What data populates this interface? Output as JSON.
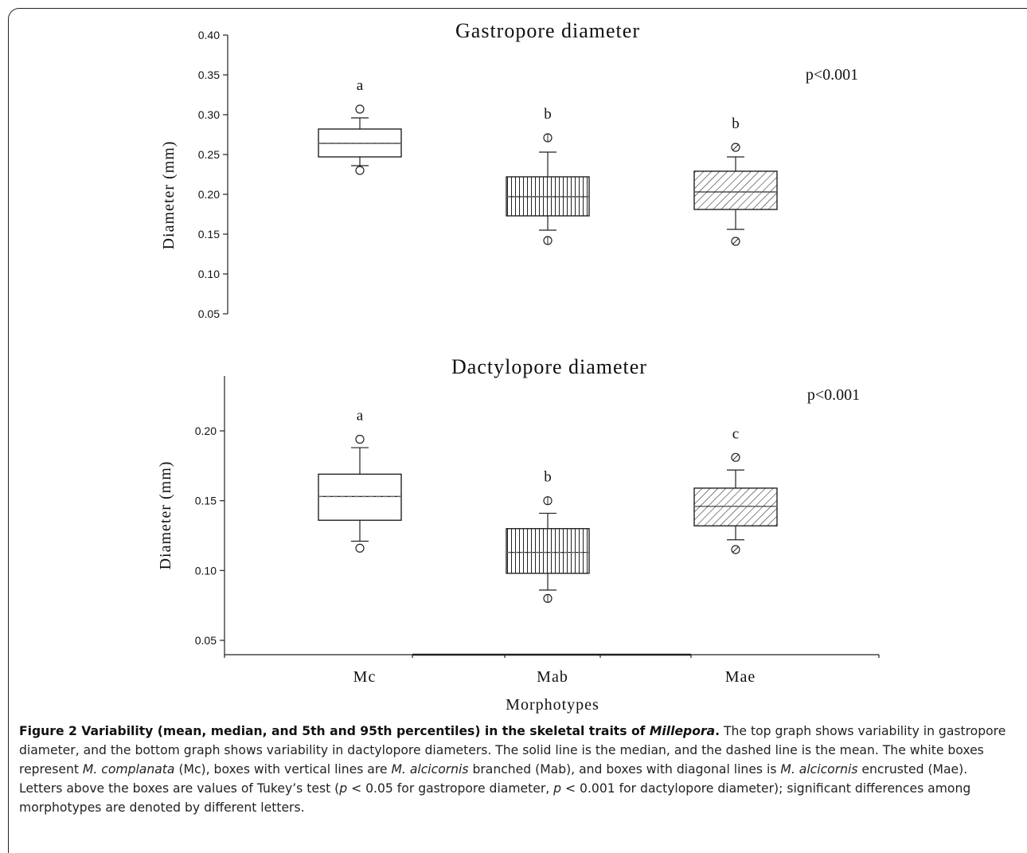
{
  "chart_data": [
    {
      "type": "box",
      "title": "Gastropore diameter",
      "ylabel": "Diameter (mm)",
      "ylim": [
        0.05,
        0.4
      ],
      "yticks": [
        "0.05",
        "0.10",
        "0.15",
        "0.20",
        "0.25",
        "0.30",
        "0.35",
        "0.40"
      ],
      "pvalue": "p<0.001",
      "boxes": [
        {
          "category": "Mc",
          "pattern": "none",
          "p5": 0.23,
          "q1": 0.247,
          "median": 0.264,
          "mean": 0.264,
          "q3": 0.282,
          "p95": 0.307,
          "whisker_low": 0.236,
          "whisker_high": 0.296,
          "tukey": "a"
        },
        {
          "category": "Mab",
          "pattern": "vertical",
          "p5": 0.142,
          "q1": 0.173,
          "median": 0.197,
          "mean": 0.197,
          "q3": 0.222,
          "p95": 0.271,
          "whisker_low": 0.155,
          "whisker_high": 0.253,
          "tukey": "b"
        },
        {
          "category": "Mae",
          "pattern": "diagonal",
          "p5": 0.141,
          "q1": 0.181,
          "median": 0.203,
          "mean": 0.203,
          "q3": 0.229,
          "p95": 0.259,
          "whisker_low": 0.156,
          "whisker_high": 0.247,
          "tukey": "b"
        }
      ]
    },
    {
      "type": "box",
      "title": "Dactylopore diameter",
      "ylabel": "Diameter (mm)",
      "xlabel": "Morphotypes",
      "ylim": [
        0.04,
        0.24
      ],
      "yticks": [
        "0.05",
        "0.10",
        "0.15",
        "0.20"
      ],
      "categories": [
        "Mc",
        "Mab",
        "Mae"
      ],
      "pvalue": "p<0.001",
      "boxes": [
        {
          "category": "Mc",
          "pattern": "none",
          "p5": 0.116,
          "q1": 0.136,
          "median": 0.153,
          "mean": 0.153,
          "q3": 0.169,
          "p95": 0.194,
          "whisker_low": 0.121,
          "whisker_high": 0.188,
          "tukey": "a"
        },
        {
          "category": "Mab",
          "pattern": "vertical",
          "p5": 0.08,
          "q1": 0.098,
          "median": 0.113,
          "mean": 0.113,
          "q3": 0.13,
          "p95": 0.15,
          "whisker_low": 0.086,
          "whisker_high": 0.141,
          "tukey": "b"
        },
        {
          "category": "Mae",
          "pattern": "diagonal",
          "p5": 0.115,
          "q1": 0.132,
          "median": 0.146,
          "mean": 0.146,
          "q3": 0.159,
          "p95": 0.181,
          "whisker_low": 0.122,
          "whisker_high": 0.172,
          "tukey": "c"
        }
      ]
    }
  ],
  "caption": {
    "label": "Figure 2 Variability (mean, median, and 5th and 95th percentiles) in the skeletal traits of ",
    "label_genus": "Millepora",
    "label_end": ".",
    "t1": " The top graph shows variability in gastropore diameter, and the bottom graph shows variability in dactylopore diameters. The solid line is the median, and the dashed line is the mean. The white boxes represent ",
    "sp1": "M. complanata",
    "t2": " (Mc), boxes with vertical lines are ",
    "sp2": "M. alcicornis",
    "t3": " branched (Mab), and boxes with diagonal lines is ",
    "sp3": "M. alcicornis",
    "t4": " encrusted (Mae). Letters above the boxes are values of Tukey’s test (",
    "p1": "p",
    "t5": " < 0.05 for gastropore diameter, ",
    "p2": "p",
    "t6": " < 0.001 for dactylopore diameter); significant differences among morphotypes are denoted by different letters."
  }
}
